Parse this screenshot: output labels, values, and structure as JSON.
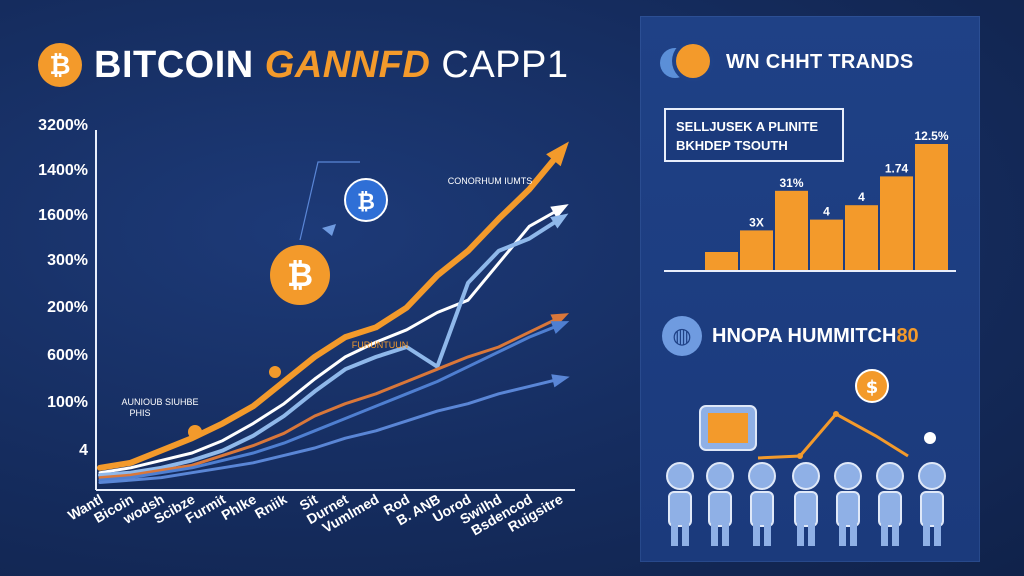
{
  "header": {
    "title_word1": "BITCOIN",
    "title_word2": "GANNFD",
    "title_word3": "CAPP1",
    "logo_glyph": "₿"
  },
  "colors": {
    "background": "#152c5e",
    "panel": "#1f4186",
    "accent_orange": "#f39a2b",
    "line_light_blue": "#8fb8ea",
    "line_blue": "#4f7fd1",
    "line_copper": "#d9773a"
  },
  "chart_data": [
    {
      "type": "line",
      "title": "",
      "xlabel": "",
      "ylabel": "",
      "y_tick_labels": [
        "3200%",
        "1400%",
        "1600%",
        "300%",
        "200%",
        "600%",
        "100%",
        "4"
      ],
      "categories": [
        "Wantl",
        "Bicoin",
        "wodsh",
        "Scibze",
        "Furmit",
        "Phlke",
        "Rniik",
        "Sit",
        "Durnet",
        "Vumlmed",
        "Rod",
        "B. ANB",
        "Uorod",
        "Swilhd",
        "Bsdencod",
        "Ruigsitre"
      ],
      "annotations": [
        {
          "text": "CONORHUM IUMTS",
          "near_category": "Uorod"
        },
        {
          "text": "AUNIOUB SIUHBE",
          "near_category": "Bicoin"
        },
        {
          "text": "PHIS",
          "near_category": "wodsh"
        },
        {
          "text": "FURUNTUUN",
          "near_category": "Durnet"
        }
      ],
      "series": [
        {
          "color": "#f39a2b",
          "values": [
            7,
            9,
            14,
            19,
            25,
            32,
            42,
            52,
            60,
            64,
            72,
            85,
            95,
            108,
            120,
            135
          ]
        },
        {
          "color": "#ffffff",
          "values": [
            5,
            7,
            10,
            13,
            18,
            25,
            33,
            43,
            52,
            58,
            63,
            70,
            75,
            90,
            105,
            112
          ]
        },
        {
          "color": "#8fb8ea",
          "values": [
            4,
            5,
            7,
            10,
            14,
            20,
            28,
            38,
            47,
            52,
            56,
            48,
            82,
            95,
            100,
            108
          ]
        },
        {
          "color": "#d9773a",
          "values": [
            3,
            4,
            6,
            8,
            12,
            16,
            21,
            28,
            33,
            37,
            42,
            47,
            52,
            56,
            62,
            68
          ]
        },
        {
          "color": "#4f7fd1",
          "values": [
            2,
            3,
            5,
            7,
            10,
            13,
            17,
            22,
            27,
            32,
            37,
            42,
            48,
            54,
            60,
            65
          ]
        },
        {
          "color": "#5a86d6",
          "values": [
            1,
            2,
            3,
            5,
            7,
            9,
            12,
            15,
            19,
            22,
            26,
            30,
            33,
            37,
            40,
            43
          ]
        }
      ]
    },
    {
      "type": "bar",
      "title": "",
      "categories": [
        "",
        "",
        "",
        "",
        "",
        "",
        ""
      ],
      "values": [
        10,
        22,
        44,
        28,
        36,
        52,
        70
      ],
      "bar_labels": [
        "",
        "3X",
        "31%",
        "4",
        "4",
        "1.74",
        "12.5%"
      ],
      "ylim": [
        0,
        75
      ],
      "color": "#f39a2b"
    }
  ],
  "right_panel": {
    "title": "WN CHHT TRANDS",
    "notice_line1": "SELLJUSEK A PLINITE",
    "notice_line2": "BKHDEP TSOUTH",
    "subtitle_main": "HNOPA HUMMITCH",
    "subtitle_accent": "80",
    "coin_glyph": "$"
  }
}
